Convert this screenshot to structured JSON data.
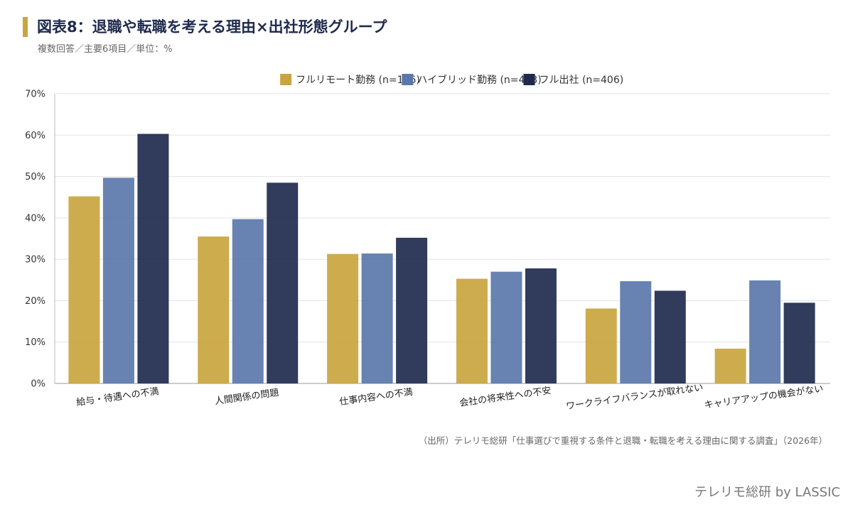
{
  "header": {
    "title": "図表8：退職や転職を考える理由×出社形態グループ",
    "subtitle": "複数回答／主要6項目／単位：%"
  },
  "footer": {
    "source": "（出所）テレリモ総研「仕事選びで重視する条件と退職・転職を考える理由に関する調査」（2026年）",
    "brand": "テレリモ総研 by LASSIC"
  },
  "chart_data": {
    "type": "bar",
    "categories": [
      "給与・待遇への不満",
      "人間関係の問題",
      "仕事内容への不満",
      "会社の将来性への不安",
      "ワークライフバランスが取れない",
      "キャリアアップの機会がない"
    ],
    "series": [
      {
        "name": "フルリモート勤務 (n=166)",
        "color": "#c9a53f",
        "values": [
          45.2,
          35.5,
          31.3,
          25.3,
          18.1,
          8.4
        ]
      },
      {
        "name": "ハイブリッド勤務 (n=433)",
        "color": "#5b78aa",
        "values": [
          49.7,
          39.7,
          31.4,
          27.0,
          24.7,
          24.9
        ]
      },
      {
        "name": "フル出社 (n=406)",
        "color": "#1f2a4d",
        "values": [
          60.3,
          48.5,
          35.2,
          27.8,
          22.4,
          19.5
        ]
      }
    ],
    "ylim": [
      0,
      70
    ],
    "yticks": [
      "0%",
      "10%",
      "20%",
      "30%",
      "40%",
      "50%",
      "60%",
      "70%"
    ],
    "grid": true,
    "legend": "top-center"
  }
}
